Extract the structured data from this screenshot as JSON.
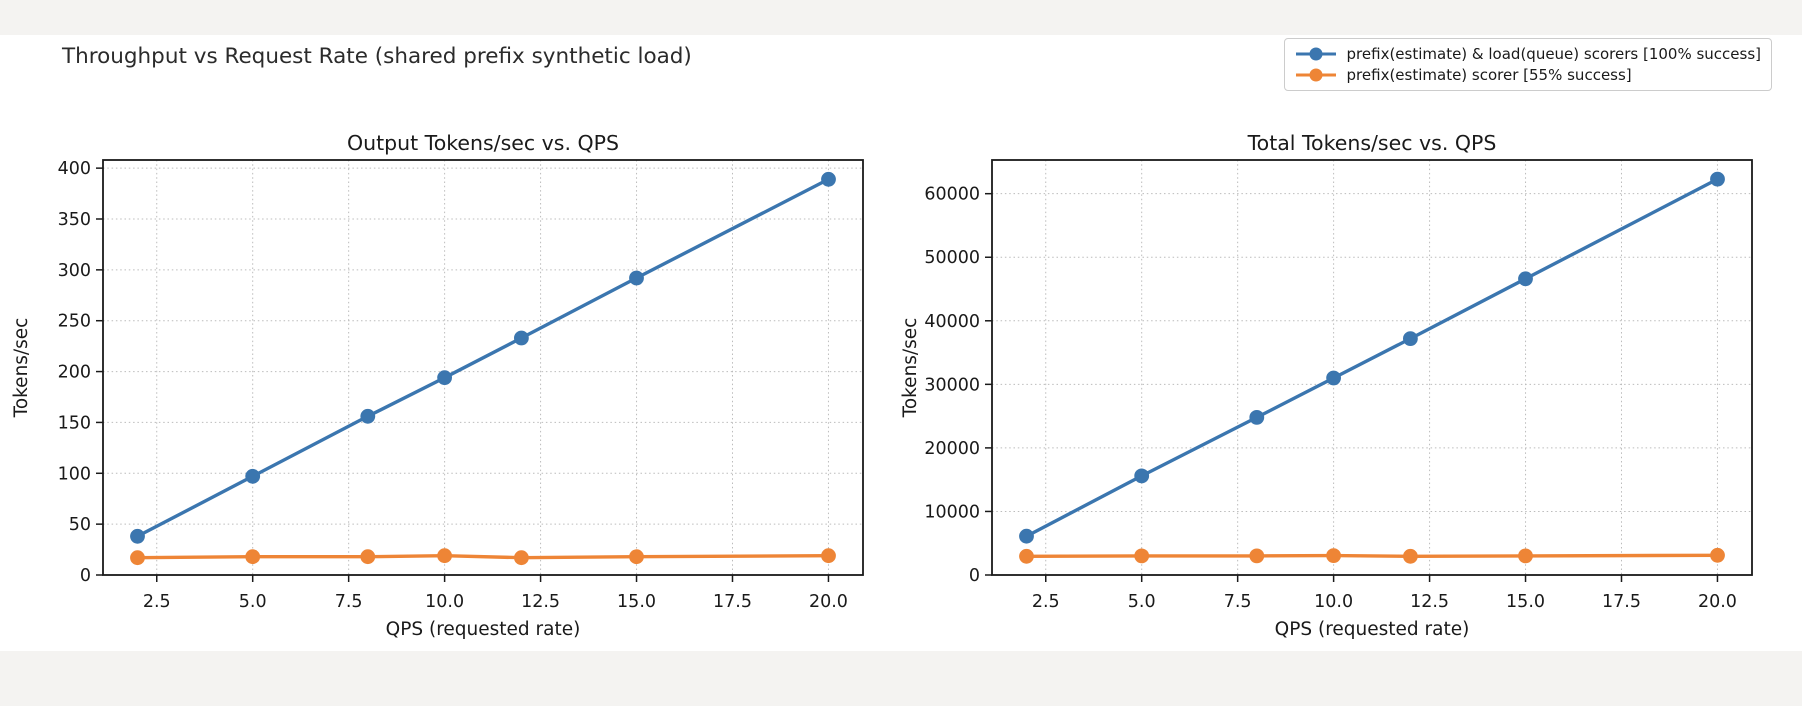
{
  "title": "Throughput vs Request Rate (shared prefix synthetic load)",
  "colors": {
    "blue": "#3b76af",
    "orange": "#ee8536",
    "spine": "#1a1a1a",
    "grid": "#bcbcbc",
    "page_background": "#f4f3f1",
    "figure_background": "#ffffff"
  },
  "legend": {
    "position": "upper right",
    "items": [
      {
        "label": "prefix(estimate) & load(queue) scorers [100% success]",
        "color": "#3b76af"
      },
      {
        "label": "prefix(estimate) scorer [55% success]",
        "color": "#ee8536"
      }
    ]
  },
  "chart_data": [
    {
      "type": "line",
      "title": "Output Tokens/sec vs. QPS",
      "xlabel": "QPS (requested rate)",
      "ylabel": "Tokens/sec",
      "grid": true,
      "x": [
        2,
        5,
        8,
        10,
        12,
        15,
        20
      ],
      "xlim": [
        1.1,
        20.9
      ],
      "ylim": [
        0,
        408
      ],
      "xticks": [
        2.5,
        5.0,
        7.5,
        10.0,
        12.5,
        15.0,
        17.5,
        20.0
      ],
      "xtick_labels": [
        "2.5",
        "5.0",
        "7.5",
        "10.0",
        "12.5",
        "15.0",
        "17.5",
        "20.0"
      ],
      "yticks": [
        0,
        50,
        100,
        150,
        200,
        250,
        300,
        350,
        400
      ],
      "ytick_labels": [
        "0",
        "50",
        "100",
        "150",
        "200",
        "250",
        "300",
        "350",
        "400"
      ],
      "series": [
        {
          "name": "prefix(estimate) & load(queue) scorers [100% success]",
          "color": "#3b76af",
          "values": [
            38,
            97,
            156,
            194,
            233,
            292,
            389
          ]
        },
        {
          "name": "prefix(estimate) scorer [55% success]",
          "color": "#ee8536",
          "values": [
            17,
            18,
            18,
            19,
            17,
            18,
            19
          ]
        }
      ]
    },
    {
      "type": "line",
      "title": "Total Tokens/sec vs. QPS",
      "xlabel": "QPS (requested rate)",
      "ylabel": "Tokens/sec",
      "grid": true,
      "x": [
        2,
        5,
        8,
        10,
        12,
        15,
        20
      ],
      "xlim": [
        1.1,
        20.9
      ],
      "ylim": [
        0,
        65300
      ],
      "xticks": [
        2.5,
        5.0,
        7.5,
        10.0,
        12.5,
        15.0,
        17.5,
        20.0
      ],
      "xtick_labels": [
        "2.5",
        "5.0",
        "7.5",
        "10.0",
        "12.5",
        "15.0",
        "17.5",
        "20.0"
      ],
      "yticks": [
        0,
        10000,
        20000,
        30000,
        40000,
        50000,
        60000
      ],
      "ytick_labels": [
        "0",
        "10000",
        "20000",
        "30000",
        "40000",
        "50000",
        "60000"
      ],
      "series": [
        {
          "name": "prefix(estimate) & load(queue) scorers [100% success]",
          "color": "#3b76af",
          "values": [
            6100,
            15600,
            24800,
            31000,
            37200,
            46600,
            62300
          ]
        },
        {
          "name": "prefix(estimate) scorer [55% success]",
          "color": "#ee8536",
          "values": [
            2950,
            3000,
            3000,
            3050,
            2950,
            3000,
            3100
          ]
        }
      ]
    }
  ]
}
